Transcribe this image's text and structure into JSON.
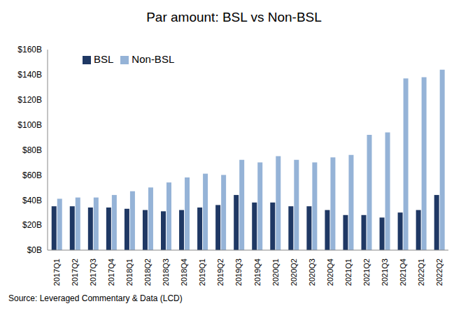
{
  "chart_data": {
    "type": "bar",
    "title": "Par amount: BSL vs Non-BSL",
    "source": "Source: Leveraged Commentary & Data (LCD)",
    "categories": [
      "2017Q1",
      "2017Q2",
      "2017Q3",
      "2017Q4",
      "2018Q1",
      "2018Q2",
      "2018Q3",
      "2018Q4",
      "2019Q1",
      "2019Q2",
      "2019Q3",
      "2019Q4",
      "2020Q1",
      "2020Q2",
      "2020Q3",
      "2020Q4",
      "2021Q1",
      "2021Q2",
      "2021Q3",
      "2021Q4",
      "2022Q1",
      "2022Q2"
    ],
    "series": [
      {
        "name": "BSL",
        "color": "#1f3864",
        "values": [
          35,
          35,
          34,
          34,
          33,
          32,
          31,
          32,
          34,
          36,
          44,
          38,
          38,
          35,
          35,
          32,
          28,
          28,
          26,
          30,
          32,
          44
        ]
      },
      {
        "name": "Non-BSL",
        "color": "#95b3d7",
        "values": [
          41,
          42,
          42,
          44,
          47,
          50,
          54,
          58,
          61,
          60,
          72,
          70,
          75,
          72,
          70,
          74,
          76,
          92,
          94,
          137,
          138,
          144
        ]
      }
    ],
    "ylim": [
      0,
      160
    ],
    "yticks": [
      {
        "value": 0,
        "label": "$0B"
      },
      {
        "value": 20,
        "label": "$20B"
      },
      {
        "value": 40,
        "label": "$40B"
      },
      {
        "value": 60,
        "label": "$60B"
      },
      {
        "value": 80,
        "label": "$80B"
      },
      {
        "value": 100,
        "label": "$100B"
      },
      {
        "value": 120,
        "label": "$120B"
      },
      {
        "value": 140,
        "label": "$140B"
      },
      {
        "value": 160,
        "label": "$160B"
      }
    ],
    "grid": false,
    "legend": "upper left"
  }
}
